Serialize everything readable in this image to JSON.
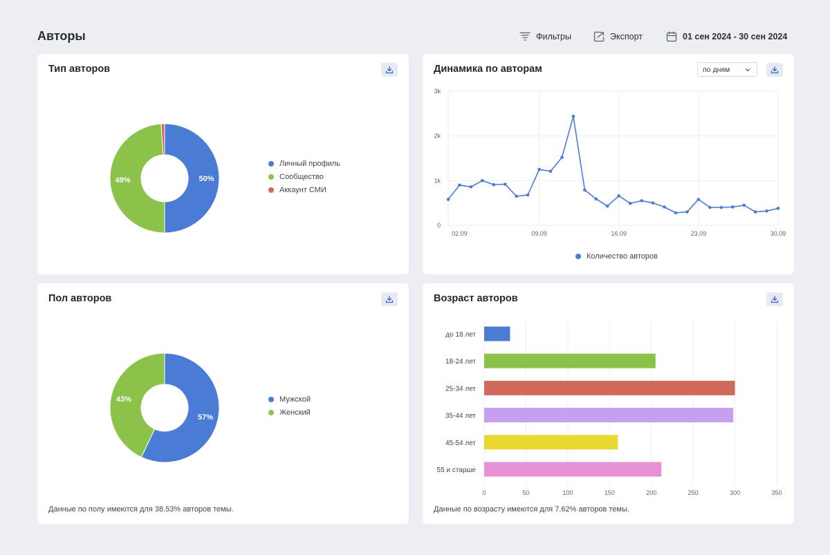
{
  "page": {
    "title": "Авторы"
  },
  "toolbar": {
    "filters_label": "Фильтры",
    "export_label": "Экспорт",
    "date_range": "01 сен 2024 - 30 сен 2024"
  },
  "author_type": {
    "title": "Тип авторов",
    "chart_data": {
      "type": "pie",
      "title": "Тип авторов",
      "labels": [
        "Личный профиль",
        "Сообщество",
        "Аккаунт СМИ"
      ],
      "values": [
        50,
        49,
        1
      ],
      "value_labels": [
        "50%",
        "49%",
        ""
      ],
      "colors": [
        "#4a7bd5",
        "#8bc34a",
        "#d06a5c"
      ],
      "legend": "right"
    }
  },
  "dynamics": {
    "title": "Динамика по авторам",
    "period_select": "по дням",
    "chart_data": {
      "type": "line",
      "title": "Динамика по авторам",
      "x": [
        1,
        2,
        3,
        4,
        5,
        6,
        7,
        8,
        9,
        10,
        11,
        12,
        13,
        14,
        15,
        16,
        17,
        18,
        19,
        20,
        21,
        22,
        23,
        24,
        25,
        26,
        27,
        28,
        29,
        30
      ],
      "x_ticks": [
        "02.09",
        "09.09",
        "16.09",
        "23.09",
        "30.09"
      ],
      "x_tick_values": [
        2,
        9,
        16,
        23,
        30
      ],
      "y_ticks": [
        "0",
        "1k",
        "2k",
        "3k"
      ],
      "y_tick_values": [
        0,
        1000,
        2000,
        3000
      ],
      "ylim": [
        0,
        3000
      ],
      "series": [
        {
          "name": "Количество авторов",
          "color": "#4a7bd5",
          "values": [
            580,
            900,
            860,
            1000,
            910,
            920,
            650,
            680,
            1250,
            1210,
            1520,
            2440,
            790,
            590,
            430,
            660,
            490,
            550,
            500,
            410,
            280,
            300,
            580,
            400,
            400,
            410,
            450,
            300,
            320,
            380
          ]
        }
      ],
      "legend": "bottom"
    }
  },
  "gender": {
    "title": "Пол авторов",
    "note": "Данные по полу имеются для 38.53% авторов темы.",
    "chart_data": {
      "type": "pie",
      "title": "Пол авторов",
      "labels": [
        "Мужской",
        "Женский"
      ],
      "values": [
        57,
        43
      ],
      "value_labels": [
        "57%",
        "43%"
      ],
      "colors": [
        "#4a7bd5",
        "#8bc34a"
      ],
      "legend": "right"
    }
  },
  "age": {
    "title": "Возраст авторов",
    "note": "Данные по возрасту имеются для 7.62% авторов темы.",
    "chart_data": {
      "type": "bar",
      "orientation": "horizontal",
      "title": "Возраст авторов",
      "categories": [
        "до 18 лет",
        "18-24 лет",
        "25-34 лет",
        "35-44 лет",
        "45-54 лет",
        "55 и старше"
      ],
      "values": [
        31,
        205,
        300,
        298,
        160,
        212
      ],
      "colors": [
        "#4a7bd5",
        "#8bc34a",
        "#d06a5c",
        "#c79ff0",
        "#e8d930",
        "#e890d6"
      ],
      "x_ticks": [
        "0",
        "50",
        "100",
        "150",
        "200",
        "250",
        "300",
        "350"
      ],
      "x_tick_values": [
        0,
        50,
        100,
        150,
        200,
        250,
        300,
        350
      ],
      "xlim": [
        0,
        350
      ]
    }
  }
}
